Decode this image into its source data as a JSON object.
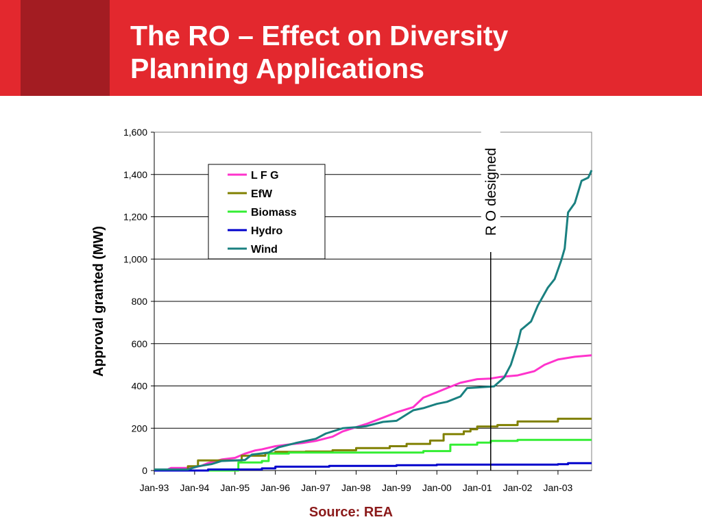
{
  "slide": {
    "title_line1": "The RO – Effect on Diversity",
    "title_line2": "Planning Applications",
    "source": "Source: REA"
  },
  "chart_data": {
    "type": "line",
    "ylabel": "Approval granted (MW)",
    "xlabel": "",
    "ylim": [
      0,
      1600
    ],
    "yticks": [
      0,
      200,
      400,
      600,
      800,
      1000,
      1200,
      1400,
      1600
    ],
    "ytick_labels": [
      "0",
      "200",
      "400",
      "600",
      "800",
      "1,000",
      "1,200",
      "1,400",
      "1,600"
    ],
    "xlim": [
      "1993-01",
      "2003-11"
    ],
    "xticks": [
      "1993-01",
      "1994-01",
      "1995-01",
      "1996-01",
      "1997-01",
      "1998-01",
      "1999-01",
      "2000-01",
      "2001-01",
      "2002-01",
      "2003-01"
    ],
    "xtick_labels": [
      "Jan-93",
      "Jan-94",
      "Jan-95",
      "Jan-96",
      "Jan-97",
      "Jan-98",
      "Jan-99",
      "Jan-00",
      "Jan-01",
      "Jan-02",
      "Jan-03"
    ],
    "grid": "horizontal",
    "legend_position": "top-left",
    "annotation": {
      "text": "R O designed",
      "x": "2001-05"
    },
    "series": [
      {
        "name": "L F G",
        "color": "#ff33cc",
        "step": false,
        "points": [
          [
            "1993-01",
            5
          ],
          [
            "1993-05",
            5
          ],
          [
            "1993-06",
            12
          ],
          [
            "1993-12",
            12
          ],
          [
            "1994-03",
            22
          ],
          [
            "1994-05",
            35
          ],
          [
            "1994-09",
            52
          ],
          [
            "1995-01",
            60
          ],
          [
            "1995-04",
            80
          ],
          [
            "1995-07",
            95
          ],
          [
            "1995-09",
            100
          ],
          [
            "1996-01",
            115
          ],
          [
            "1996-06",
            125
          ],
          [
            "1996-09",
            130
          ],
          [
            "1997-01",
            140
          ],
          [
            "1997-06",
            160
          ],
          [
            "1997-09",
            185
          ],
          [
            "1998-01",
            205
          ],
          [
            "1998-04",
            220
          ],
          [
            "1998-09",
            250
          ],
          [
            "1999-01",
            275
          ],
          [
            "1999-06",
            300
          ],
          [
            "1999-09",
            345
          ],
          [
            "2000-01",
            370
          ],
          [
            "2000-04",
            390
          ],
          [
            "2000-08",
            415
          ],
          [
            "2001-01",
            432
          ],
          [
            "2001-05",
            435
          ],
          [
            "2001-08",
            443
          ],
          [
            "2002-01",
            450
          ],
          [
            "2002-06",
            470
          ],
          [
            "2002-09",
            500
          ],
          [
            "2003-01",
            525
          ],
          [
            "2003-06",
            538
          ],
          [
            "2003-11",
            545
          ]
        ]
      },
      {
        "name": "EfW",
        "color": "#808000",
        "step": true,
        "points": [
          [
            "1993-01",
            5
          ],
          [
            "1993-11",
            20
          ],
          [
            "1994-02",
            48
          ],
          [
            "1995-03",
            70
          ],
          [
            "1995-10",
            82
          ],
          [
            "1996-01",
            88
          ],
          [
            "1996-10",
            90
          ],
          [
            "1997-06",
            96
          ],
          [
            "1998-01",
            106
          ],
          [
            "1998-11",
            115
          ],
          [
            "1999-04",
            126
          ],
          [
            "1999-11",
            142
          ],
          [
            "2000-03",
            172
          ],
          [
            "2000-09",
            185
          ],
          [
            "2000-11",
            195
          ],
          [
            "2001-01",
            208
          ],
          [
            "2001-07",
            215
          ],
          [
            "2002-01",
            232
          ],
          [
            "2003-01",
            245
          ],
          [
            "2003-11",
            245
          ]
        ]
      },
      {
        "name": "Biomass",
        "color": "#33ee33",
        "step": true,
        "points": [
          [
            "1993-01",
            0
          ],
          [
            "1994-11",
            0
          ],
          [
            "1995-02",
            38
          ],
          [
            "1995-09",
            45
          ],
          [
            "1995-11",
            80
          ],
          [
            "1996-05",
            85
          ],
          [
            "1999-09",
            92
          ],
          [
            "2000-05",
            122
          ],
          [
            "2001-01",
            132
          ],
          [
            "2001-05",
            140
          ],
          [
            "2001-11",
            140
          ],
          [
            "2002-01",
            145
          ],
          [
            "2003-11",
            145
          ]
        ]
      },
      {
        "name": "Hydro",
        "color": "#0000cc",
        "step": true,
        "points": [
          [
            "1993-01",
            0
          ],
          [
            "1994-05",
            5
          ],
          [
            "1995-09",
            10
          ],
          [
            "1996-01",
            18
          ],
          [
            "1997-05",
            22
          ],
          [
            "1999-01",
            25
          ],
          [
            "2000-01",
            28
          ],
          [
            "2003-01",
            30
          ],
          [
            "2003-04",
            35
          ],
          [
            "2003-11",
            35
          ]
        ]
      },
      {
        "name": "Wind",
        "color": "#1a8080",
        "step": false,
        "points": [
          [
            "1993-01",
            5
          ],
          [
            "1993-11",
            5
          ],
          [
            "1994-02",
            20
          ],
          [
            "1994-06",
            30
          ],
          [
            "1994-09",
            45
          ],
          [
            "1995-04",
            50
          ],
          [
            "1995-06",
            75
          ],
          [
            "1995-11",
            85
          ],
          [
            "1996-02",
            110
          ],
          [
            "1996-07",
            130
          ],
          [
            "1997-01",
            150
          ],
          [
            "1997-04",
            175
          ],
          [
            "1997-09",
            200
          ],
          [
            "1998-01",
            205
          ],
          [
            "1998-04",
            210
          ],
          [
            "1998-09",
            230
          ],
          [
            "1999-01",
            235
          ],
          [
            "1999-06",
            285
          ],
          [
            "1999-09",
            295
          ],
          [
            "2000-01",
            315
          ],
          [
            "2000-04",
            325
          ],
          [
            "2000-08",
            350
          ],
          [
            "2000-10",
            390
          ],
          [
            "2001-01",
            393
          ],
          [
            "2001-06",
            398
          ],
          [
            "2001-09",
            440
          ],
          [
            "2001-11",
            500
          ],
          [
            "2002-01",
            600
          ],
          [
            "2002-02",
            665
          ],
          [
            "2002-05",
            705
          ],
          [
            "2002-07",
            780
          ],
          [
            "2002-10",
            865
          ],
          [
            "2002-12",
            905
          ],
          [
            "2003-02",
            995
          ],
          [
            "2003-03",
            1050
          ],
          [
            "2003-04",
            1220
          ],
          [
            "2003-06",
            1265
          ],
          [
            "2003-08",
            1370
          ],
          [
            "2003-10",
            1385
          ],
          [
            "2003-11",
            1420
          ]
        ]
      }
    ]
  }
}
